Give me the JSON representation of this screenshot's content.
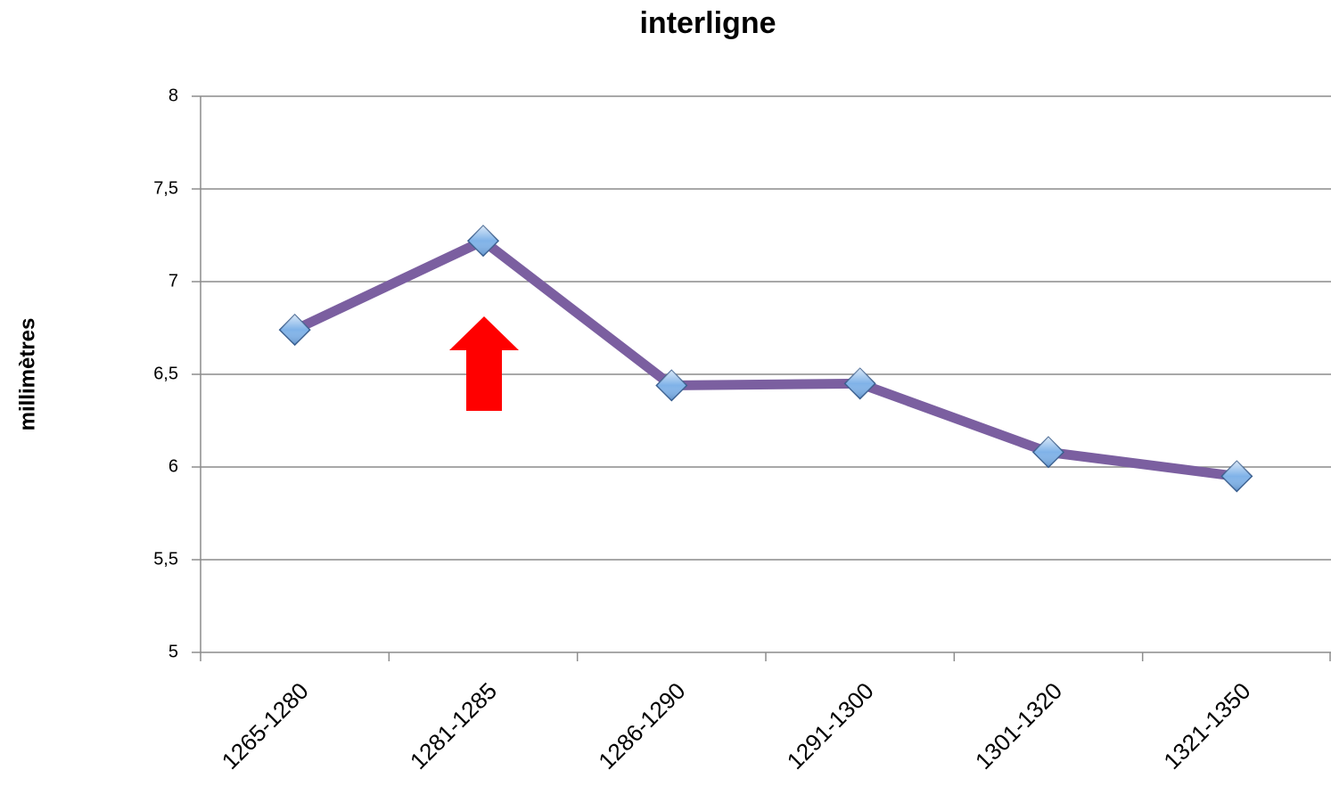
{
  "chart_data": {
    "type": "line",
    "title": "interligne",
    "y_label": "millimètres",
    "categories": [
      "1265-1280",
      "1281-1285",
      "1286-1290",
      "1291-1300",
      "1301-1320",
      "1321-1350"
    ],
    "series": [
      {
        "color": "#7b5fa0",
        "marker_color": "#7fb2e8",
        "values": [
          6.74,
          7.22,
          6.44,
          6.45,
          6.08,
          5.95
        ]
      }
    ],
    "ylim": [
      5,
      8
    ],
    "yticks": [
      5,
      {
        "value": 5.5,
        "label": "5,5"
      },
      6,
      {
        "value": 6.5,
        "label": "6,5"
      },
      7,
      {
        "value": 7.5,
        "label": "7,5"
      },
      8
    ],
    "grid": true
  }
}
